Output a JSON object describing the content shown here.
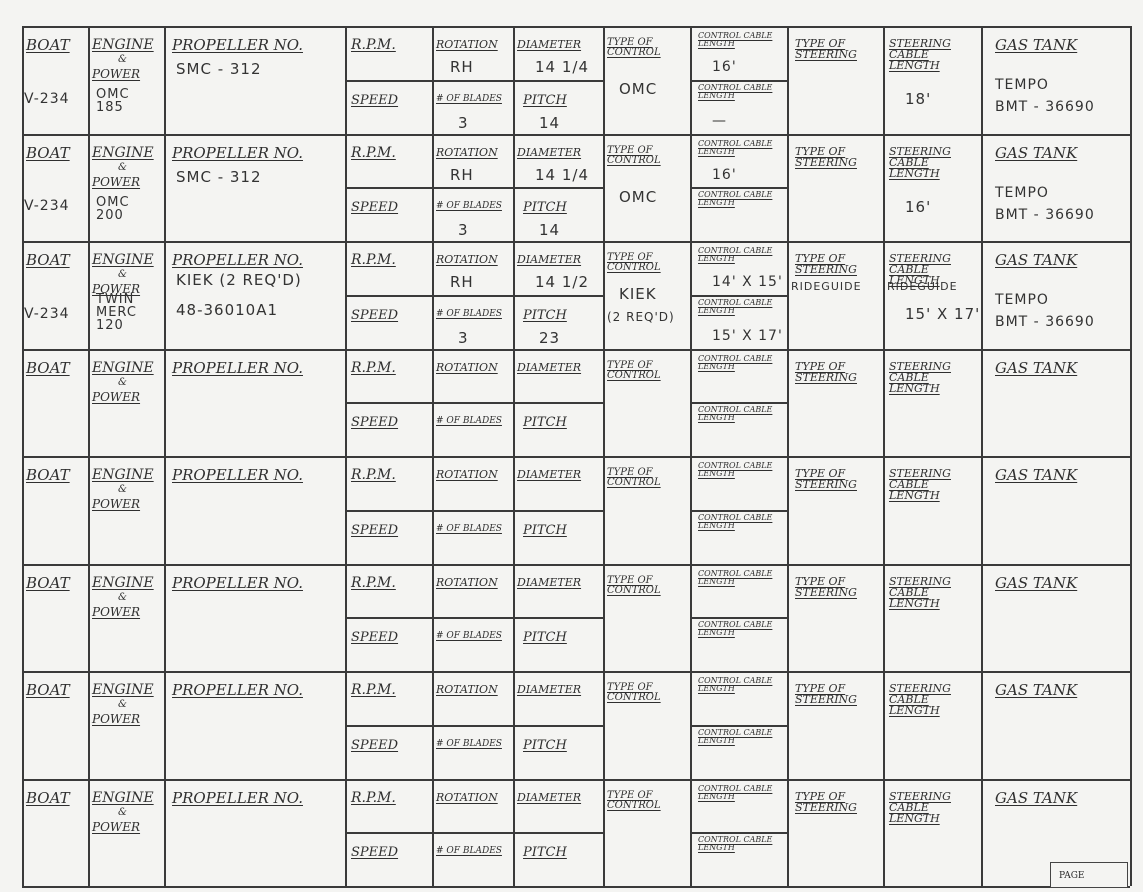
{
  "labels": {
    "boat": "Boat",
    "engine": "Engine",
    "amp": "&",
    "power": "Power",
    "propeller": "Propeller No.",
    "rpm": "R.P.M.",
    "rotation": "Rotation",
    "diameter": "Diameter",
    "speed": "Speed",
    "blades": "# of Blades",
    "pitch": "Pitch",
    "type_control": "Type of Control",
    "control_cable": "Control Cable Length",
    "type_steering": "Type of Steering",
    "steering_cable": "Steering Cable Length",
    "gas_tank": "Gas Tank",
    "page": "Page"
  },
  "records": [
    {
      "boat": "V-234",
      "engine_power": [
        "OMC",
        "185"
      ],
      "propeller": "SMC - 312",
      "rotation": "RH",
      "diameter": "14 1/4",
      "blades": "3",
      "pitch": "14",
      "type_control": "OMC",
      "cable1": "16'",
      "cable2": "—",
      "steering": "",
      "steering_cable": "18'",
      "gas_tank": [
        "TEMPO",
        "BMT - 36690"
      ]
    },
    {
      "boat": "V-234",
      "engine_power": [
        "OMC",
        "200"
      ],
      "propeller": "SMC - 312",
      "rotation": "RH",
      "diameter": "14 1/4",
      "blades": "3",
      "pitch": "14",
      "type_control": "OMC",
      "cable1": "16'",
      "cable2": "",
      "steering": "",
      "steering_cable": "16'",
      "gas_tank": [
        "TEMPO",
        "BMT - 36690"
      ]
    },
    {
      "boat": "V-234",
      "engine_power": [
        "TWIN",
        "MERC",
        "120"
      ],
      "propeller": "KIEK (2 REQ'D)",
      "propeller_2": "48-36010A1",
      "rotation": "RH",
      "diameter": "14 1/2",
      "blades": "3",
      "pitch": "23",
      "type_control": "KIEK",
      "type_control_2": "(2 REQ'D)",
      "cable1": "14' X 15'",
      "cable2": "15' X 17'",
      "steering": "RIDEGUIDE",
      "steering_2": "RIDEGUIDE",
      "steering_cable": "15' X 17'",
      "gas_tank": [
        "TEMPO",
        "BMT - 36690"
      ]
    },
    {},
    {},
    {},
    {},
    {}
  ]
}
